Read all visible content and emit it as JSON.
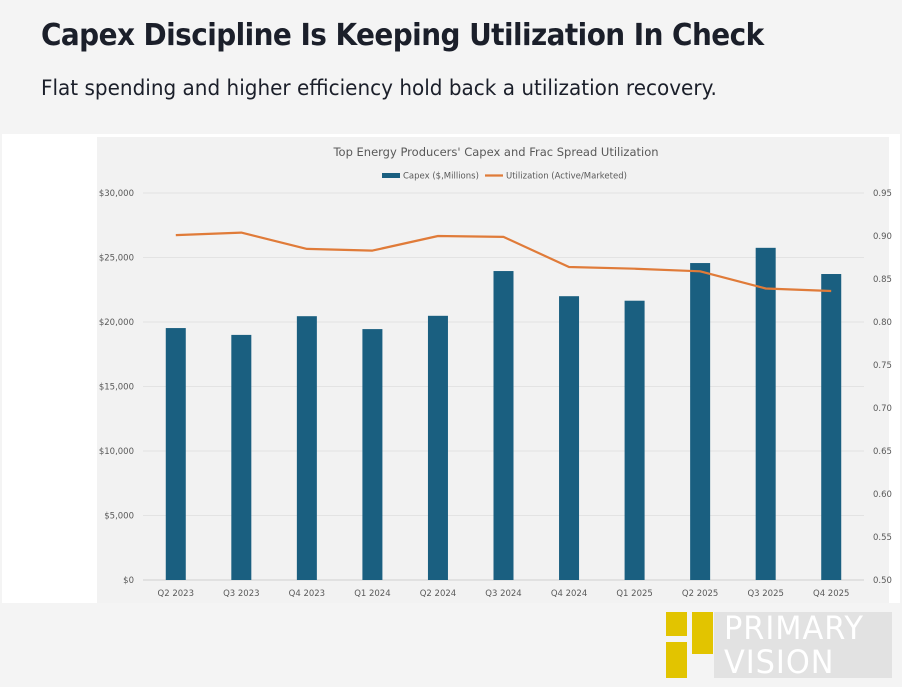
{
  "header": {
    "title": "Capex Discipline Is Keeping Utilization In Check",
    "subtitle": "Flat spending and higher efficiency hold back a utilization recovery."
  },
  "brand": {
    "line1": "PRIMARY",
    "line2": "VISION",
    "accent_color": "#e2c400"
  },
  "chart_data": {
    "type": "bar",
    "title": "Top Energy Producers' Capex and Frac Spread Utilization",
    "categories": [
      "Q2 2023",
      "Q3 2023",
      "Q4 2023",
      "Q1 2024",
      "Q2 2024",
      "Q3 2024",
      "Q4 2024",
      "Q1 2025",
      "Q2 2025",
      "Q3 2025",
      "Q4 2025"
    ],
    "series": [
      {
        "name": "Capex ($,Millions)",
        "type": "bar",
        "axis": "left",
        "color": "#1a5f80",
        "values": [
          19530,
          19000,
          20450,
          19450,
          20480,
          23950,
          22000,
          21650,
          24570,
          25750,
          23720
        ]
      },
      {
        "name": "Utilization (Active/Marketed)",
        "type": "line",
        "axis": "right",
        "color": "#e07b39",
        "values": [
          0.901,
          0.904,
          0.885,
          0.883,
          0.9,
          0.899,
          0.864,
          0.862,
          0.859,
          0.839,
          0.836
        ]
      }
    ],
    "xlabel": "",
    "ylabel": "",
    "y_left": {
      "range": [
        0,
        30000
      ],
      "ticks": [
        0,
        5000,
        10000,
        15000,
        20000,
        25000,
        30000
      ],
      "tick_labels": [
        "$0",
        "$5,000",
        "$10,000",
        "$15,000",
        "$20,000",
        "$25,000",
        "$30,000"
      ]
    },
    "y_right": {
      "range": [
        0.5,
        0.95
      ],
      "ticks": [
        0.5,
        0.55,
        0.6,
        0.65,
        0.7,
        0.75,
        0.8,
        0.85,
        0.9,
        0.95
      ],
      "tick_labels": [
        "0.50",
        "0.55",
        "0.60",
        "0.65",
        "0.70",
        "0.75",
        "0.80",
        "0.85",
        "0.90",
        "0.95"
      ]
    },
    "grid": true,
    "legend": "top-center"
  }
}
